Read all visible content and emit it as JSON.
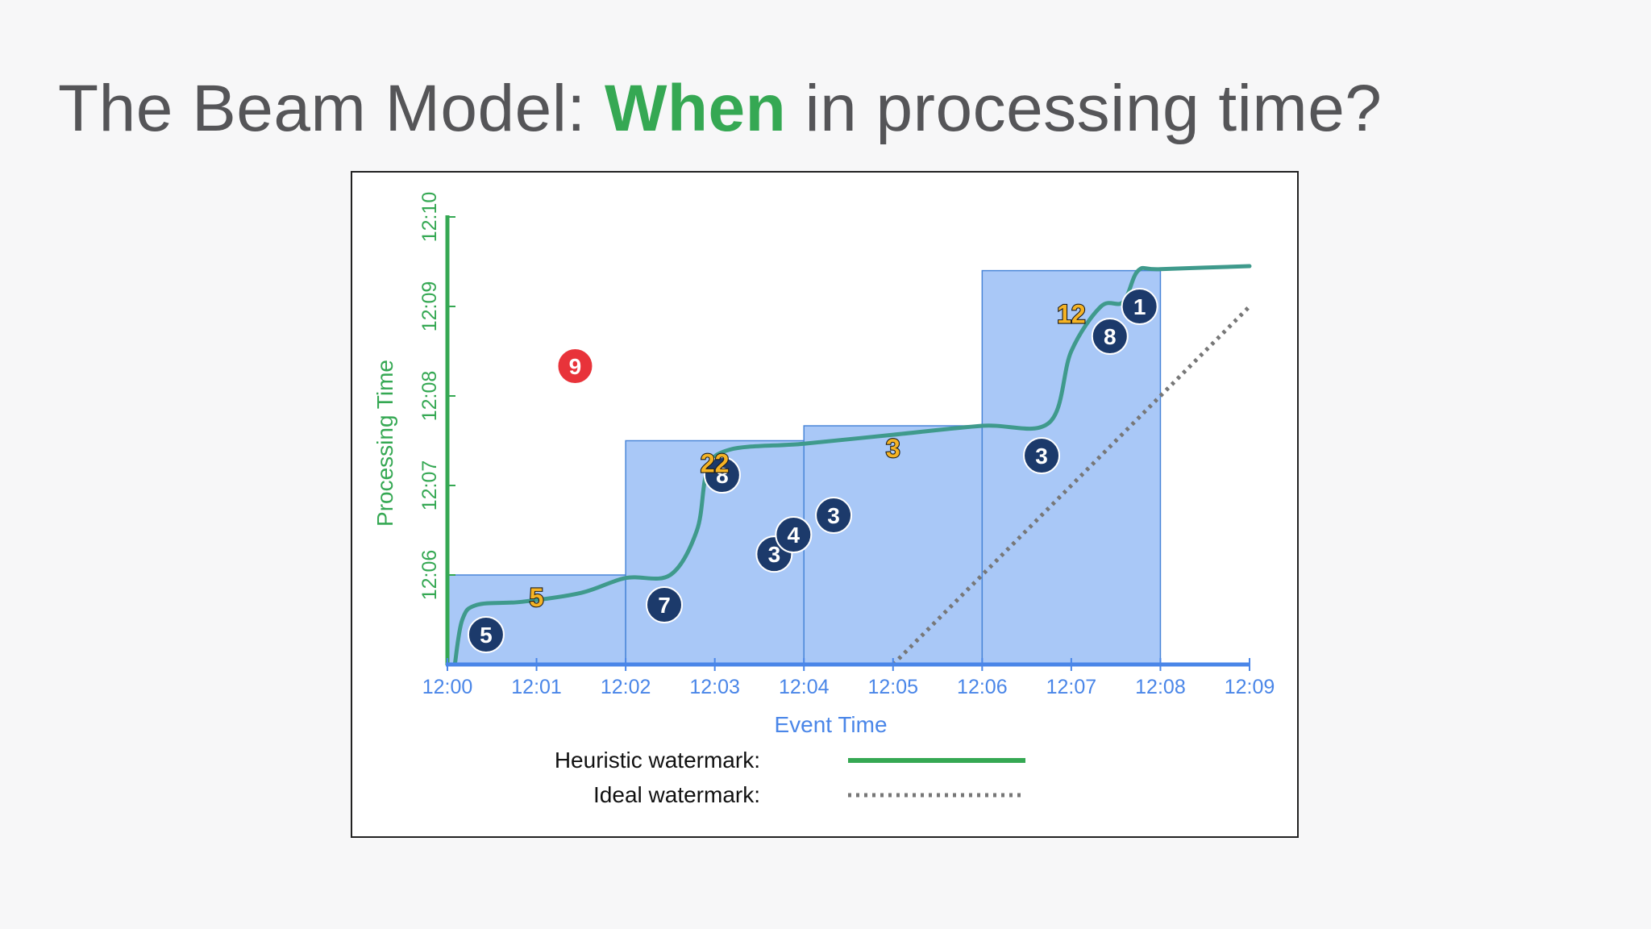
{
  "title": {
    "part1": "The Beam Model: ",
    "accent": "When",
    "part2": " in processing time?"
  },
  "colors": {
    "accent": "#35a853",
    "window_fill": "#a9c8f7",
    "window_stroke": "#4a86d8",
    "axis_x": "#4a86e8",
    "axis_y": "#35a853",
    "heuristic": "#3f9a8c",
    "ideal": "#777777",
    "dark_circle": "#1c3a6b",
    "late_circle": "#e8333a",
    "on_time_pane": "#f5b324"
  },
  "chart_data": {
    "type": "scatter",
    "xlabel": "Event Time",
    "ylabel": "Processing Time",
    "x_ticks": [
      "12:00",
      "12:01",
      "12:02",
      "12:03",
      "12:04",
      "12:05",
      "12:06",
      "12:07",
      "12:08",
      "12:09"
    ],
    "y_ticks": [
      "12:06",
      "12:07",
      "12:08",
      "12:09",
      "12:10"
    ],
    "xlim": [
      "12:00",
      "12:09"
    ],
    "ylim": [
      "12:05",
      "12:10"
    ],
    "windows": [
      {
        "start": "12:00",
        "end": "12:02",
        "top": "12:06:00"
      },
      {
        "start": "12:02",
        "end": "12:04",
        "top": "12:07:30"
      },
      {
        "start": "12:04",
        "end": "12:06",
        "top": "12:07:40"
      },
      {
        "start": "12:06",
        "end": "12:08",
        "top": "12:09:24"
      }
    ],
    "data_points": [
      {
        "value": "5",
        "event_time": "12:00:26",
        "processing_time": "12:05:20"
      },
      {
        "value": "7",
        "event_time": "12:02:26",
        "processing_time": "12:05:40"
      },
      {
        "value": "3",
        "event_time": "12:03:40",
        "processing_time": "12:06:14"
      },
      {
        "value": "4",
        "event_time": "12:03:53",
        "processing_time": "12:06:27"
      },
      {
        "value": "3",
        "event_time": "12:04:20",
        "processing_time": "12:06:40"
      },
      {
        "value": "8",
        "event_time": "12:03:05",
        "processing_time": "12:07:07"
      },
      {
        "value": "3",
        "event_time": "12:06:40",
        "processing_time": "12:07:20"
      },
      {
        "value": "8",
        "event_time": "12:07:26",
        "processing_time": "12:08:40"
      },
      {
        "value": "1",
        "event_time": "12:07:46",
        "processing_time": "12:09:00"
      }
    ],
    "late_points": [
      {
        "value": "9",
        "event_time": "12:01:26",
        "processing_time": "12:08:20"
      }
    ],
    "pane_results": [
      {
        "value": "5",
        "event_time": "12:01:00",
        "processing_time": "12:05:45"
      },
      {
        "value": "22",
        "event_time": "12:03:00",
        "processing_time": "12:07:15"
      },
      {
        "value": "3",
        "event_time": "12:05:00",
        "processing_time": "12:07:25"
      },
      {
        "value": "12",
        "event_time": "12:07:00",
        "processing_time": "12:08:55"
      }
    ],
    "heuristic_watermark": [
      [
        "12:00:05",
        "12:05:00"
      ],
      [
        "12:00:10",
        "12:05:30"
      ],
      [
        "12:00:20",
        "12:05:40"
      ],
      [
        "12:00:50",
        "12:05:42"
      ],
      [
        "12:01:30",
        "12:05:48"
      ],
      [
        "12:02:00",
        "12:05:58"
      ],
      [
        "12:02:30",
        "12:06:00"
      ],
      [
        "12:02:48",
        "12:06:30"
      ],
      [
        "12:02:55",
        "12:07:10"
      ],
      [
        "12:03:10",
        "12:07:24"
      ],
      [
        "12:04:00",
        "12:07:28"
      ],
      [
        "12:05:00",
        "12:07:34"
      ],
      [
        "12:06:00",
        "12:07:40"
      ],
      [
        "12:06:45",
        "12:07:42"
      ],
      [
        "12:07:00",
        "12:08:30"
      ],
      [
        "12:07:20",
        "12:09:00"
      ],
      [
        "12:07:35",
        "12:09:03"
      ],
      [
        "12:07:45",
        "12:09:24"
      ],
      [
        "12:08:00",
        "12:09:25"
      ],
      [
        "12:09:00",
        "12:09:27"
      ]
    ],
    "ideal_watermark": [
      [
        "12:05:00",
        "12:05:00"
      ],
      [
        "12:09:00",
        "12:09:00"
      ]
    ],
    "legend": [
      {
        "label": "Heuristic watermark:",
        "style": "solid"
      },
      {
        "label": "Ideal watermark:",
        "style": "dotted"
      }
    ],
    "grid": false
  }
}
